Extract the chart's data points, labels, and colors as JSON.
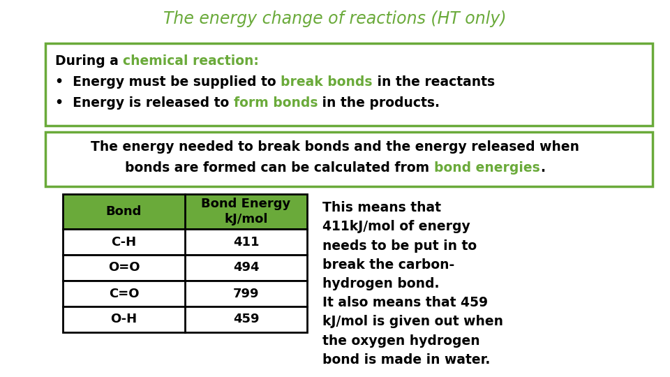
{
  "title": "The energy change of reactions (HT only)",
  "title_color": "#6aaa3a",
  "title_fontsize": 17,
  "background_color": "#ffffff",
  "box_border_color": "#6aaa3a",
  "table_header_bg": "#6aaa3a",
  "table_bonds": [
    "C-H",
    "O=O",
    "C=O",
    "O-H"
  ],
  "table_energies": [
    "411",
    "494",
    "799",
    "459"
  ],
  "side_text_color": "#000000",
  "green_color": "#6aaa3a",
  "black_color": "#000000"
}
